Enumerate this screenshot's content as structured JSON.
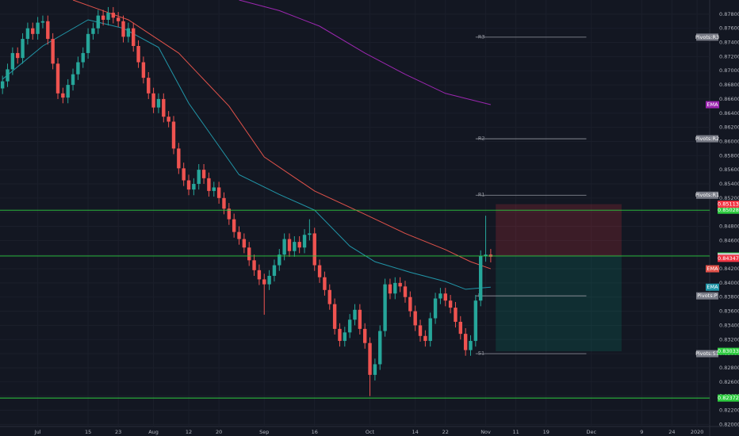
{
  "chart_data": {
    "type": "candlestick",
    "up_color": "#26a69a",
    "down_color": "#ef5350",
    "grid": true,
    "xlim": [
      -0.5,
      140.5
    ],
    "ylim": [
      0.8197,
      0.88
    ],
    "x": [
      0,
      1,
      2,
      3,
      4,
      5,
      6,
      7,
      8,
      9,
      10,
      11,
      12,
      13,
      14,
      15,
      16,
      17,
      18,
      19,
      20,
      21,
      22,
      23,
      24,
      25,
      26,
      27,
      28,
      29,
      30,
      31,
      32,
      33,
      34,
      35,
      36,
      37,
      38,
      39,
      40,
      41,
      42,
      43,
      44,
      45,
      46,
      47,
      48,
      49,
      50,
      51,
      52,
      53,
      54,
      55,
      56,
      57,
      58,
      59,
      60,
      61,
      62,
      63,
      64,
      65,
      66,
      67,
      68,
      69,
      70,
      71,
      72,
      73,
      74,
      75,
      76,
      77,
      78,
      79,
      80,
      81,
      82,
      83,
      84,
      85,
      86,
      87,
      88,
      89,
      90,
      91,
      92,
      93,
      94,
      95,
      96,
      97
    ],
    "open": [
      0.8675,
      0.8685,
      0.8702,
      0.8725,
      0.8718,
      0.8745,
      0.876,
      0.8752,
      0.8768,
      0.877,
      0.8745,
      0.871,
      0.8668,
      0.8662,
      0.868,
      0.8695,
      0.8712,
      0.8725,
      0.8752,
      0.876,
      0.8778,
      0.8772,
      0.8782,
      0.8775,
      0.877,
      0.8748,
      0.876,
      0.8735,
      0.8712,
      0.869,
      0.8668,
      0.8648,
      0.866,
      0.8635,
      0.8628,
      0.859,
      0.8562,
      0.8545,
      0.8532,
      0.854,
      0.856,
      0.8548,
      0.853,
      0.8535,
      0.852,
      0.8505,
      0.849,
      0.8472,
      0.8462,
      0.845,
      0.8432,
      0.8418,
      0.8405,
      0.8398,
      0.841,
      0.8425,
      0.844,
      0.8462,
      0.8445,
      0.8458,
      0.845,
      0.8468,
      0.847,
      0.8425,
      0.8408,
      0.839,
      0.837,
      0.8335,
      0.8318,
      0.833,
      0.8348,
      0.8362,
      0.8335,
      0.8315,
      0.827,
      0.8285,
      0.8332,
      0.8398,
      0.8385,
      0.84,
      0.8395,
      0.838,
      0.836,
      0.834,
      0.8325,
      0.8318,
      0.835,
      0.8378,
      0.8385,
      0.8375,
      0.8365,
      0.8345,
      0.8328,
      0.8305,
      0.8318,
      0.8375,
      0.8438,
      0.844
    ],
    "high": [
      0.8693,
      0.871,
      0.8733,
      0.8733,
      0.8753,
      0.8768,
      0.8768,
      0.8776,
      0.8778,
      0.8778,
      0.8753,
      0.8718,
      0.8676,
      0.8688,
      0.8703,
      0.872,
      0.8733,
      0.876,
      0.8768,
      0.8786,
      0.8786,
      0.879,
      0.879,
      0.8783,
      0.8778,
      0.8768,
      0.8768,
      0.8743,
      0.872,
      0.8698,
      0.8676,
      0.8668,
      0.8668,
      0.8643,
      0.8636,
      0.8598,
      0.857,
      0.8553,
      0.8548,
      0.8568,
      0.8568,
      0.8556,
      0.8543,
      0.8543,
      0.8528,
      0.8513,
      0.8498,
      0.848,
      0.847,
      0.8458,
      0.844,
      0.8426,
      0.8413,
      0.8418,
      0.8433,
      0.8448,
      0.847,
      0.847,
      0.8466,
      0.8466,
      0.8476,
      0.849,
      0.8478,
      0.8433,
      0.8416,
      0.8398,
      0.8378,
      0.8343,
      0.8338,
      0.8356,
      0.837,
      0.837,
      0.8343,
      0.8323,
      0.8293,
      0.834,
      0.8406,
      0.8406,
      0.8408,
      0.8408,
      0.8403,
      0.8388,
      0.8368,
      0.8348,
      0.8333,
      0.8358,
      0.8386,
      0.8393,
      0.8393,
      0.8383,
      0.8373,
      0.8353,
      0.8336,
      0.8326,
      0.8383,
      0.8446,
      0.8495,
      0.8448
    ],
    "low": [
      0.8667,
      0.8677,
      0.8694,
      0.871,
      0.871,
      0.8737,
      0.8744,
      0.8744,
      0.876,
      0.8737,
      0.8702,
      0.866,
      0.8654,
      0.8654,
      0.8672,
      0.8687,
      0.8704,
      0.8717,
      0.8744,
      0.8752,
      0.8764,
      0.8764,
      0.8767,
      0.8762,
      0.874,
      0.874,
      0.8727,
      0.8704,
      0.8682,
      0.866,
      0.864,
      0.864,
      0.8627,
      0.862,
      0.8582,
      0.8554,
      0.8537,
      0.8524,
      0.8524,
      0.8532,
      0.854,
      0.8522,
      0.8522,
      0.8512,
      0.8497,
      0.8482,
      0.8464,
      0.8454,
      0.8442,
      0.8424,
      0.841,
      0.8397,
      0.8355,
      0.839,
      0.8402,
      0.8417,
      0.8432,
      0.8437,
      0.8437,
      0.8442,
      0.8442,
      0.846,
      0.8417,
      0.84,
      0.8382,
      0.8362,
      0.8327,
      0.831,
      0.831,
      0.8322,
      0.834,
      0.8327,
      0.8307,
      0.824,
      0.8262,
      0.8277,
      0.8324,
      0.8377,
      0.8377,
      0.8387,
      0.8372,
      0.8352,
      0.8332,
      0.8317,
      0.831,
      0.831,
      0.8342,
      0.837,
      0.8367,
      0.8357,
      0.8337,
      0.832,
      0.8297,
      0.8297,
      0.831,
      0.8367,
      0.843,
      0.8429
    ],
    "close": [
      0.8685,
      0.8702,
      0.8725,
      0.8718,
      0.8745,
      0.876,
      0.8752,
      0.8768,
      0.877,
      0.8745,
      0.871,
      0.8668,
      0.8662,
      0.868,
      0.8695,
      0.8712,
      0.8725,
      0.8752,
      0.876,
      0.8778,
      0.8772,
      0.8782,
      0.8775,
      0.877,
      0.8748,
      0.876,
      0.8735,
      0.8712,
      0.869,
      0.8668,
      0.8648,
      0.866,
      0.8635,
      0.8628,
      0.859,
      0.8562,
      0.8545,
      0.8532,
      0.854,
      0.856,
      0.8548,
      0.853,
      0.8535,
      0.852,
      0.8505,
      0.849,
      0.8472,
      0.8462,
      0.845,
      0.8432,
      0.8418,
      0.8405,
      0.8398,
      0.841,
      0.8425,
      0.844,
      0.8462,
      0.8445,
      0.8458,
      0.845,
      0.8468,
      0.847,
      0.8425,
      0.8408,
      0.839,
      0.837,
      0.8335,
      0.8318,
      0.833,
      0.8348,
      0.8362,
      0.8335,
      0.8315,
      0.827,
      0.8285,
      0.8332,
      0.8398,
      0.8385,
      0.84,
      0.8395,
      0.838,
      0.836,
      0.834,
      0.8325,
      0.8318,
      0.835,
      0.8378,
      0.8385,
      0.8375,
      0.8365,
      0.8345,
      0.8328,
      0.8305,
      0.8318,
      0.8375,
      0.8438,
      0.844,
      0.8437
    ],
    "lines": [
      {
        "name": "EMA",
        "color": "#9c27b0",
        "x": [
          47,
          55,
          63,
          72,
          80,
          88,
          97
        ],
        "values": [
          0.88,
          0.8785,
          0.8763,
          0.8725,
          0.8695,
          0.8668,
          0.8652
        ]
      },
      {
        "name": "EMA",
        "color": "#e0524a",
        "x": [
          14,
          25,
          35,
          45,
          52,
          62,
          72,
          80,
          88,
          93,
          97
        ],
        "values": [
          0.88,
          0.8772,
          0.8725,
          0.865,
          0.8578,
          0.853,
          0.8497,
          0.847,
          0.8447,
          0.843,
          0.842
        ]
      },
      {
        "name": "EMA",
        "color": "#2196a8",
        "x": [
          0,
          8,
          17,
          24,
          31,
          37,
          47,
          55,
          62,
          69,
          74,
          81,
          88,
          92,
          97
        ],
        "values": [
          0.8688,
          0.8735,
          0.8772,
          0.876,
          0.8733,
          0.8654,
          0.8553,
          0.8525,
          0.8503,
          0.8452,
          0.843,
          0.8415,
          0.8402,
          0.8391,
          0.8394
        ]
      }
    ],
    "yticks": [
      {
        "value": 0.82,
        "label": "0.82000"
      },
      {
        "value": 0.822,
        "label": "0.82200"
      },
      {
        "value": 0.824,
        "label": "0.82400"
      },
      {
        "value": 0.826,
        "label": "0.82600"
      },
      {
        "value": 0.828,
        "label": "0.82800"
      },
      {
        "value": 0.83,
        "label": "0.83000"
      },
      {
        "value": 0.832,
        "label": "0.83200"
      },
      {
        "value": 0.834,
        "label": "0.83400"
      },
      {
        "value": 0.836,
        "label": "0.83600"
      },
      {
        "value": 0.838,
        "label": "0.83800"
      },
      {
        "value": 0.84,
        "label": "0.84000"
      },
      {
        "value": 0.842,
        "label": "0.84200"
      },
      {
        "value": 0.844,
        "label": "0.84400"
      },
      {
        "value": 0.846,
        "label": "0.84600"
      },
      {
        "value": 0.848,
        "label": "0.84800"
      },
      {
        "value": 0.85,
        "label": "0.85000"
      },
      {
        "value": 0.852,
        "label": "0.85200"
      },
      {
        "value": 0.854,
        "label": "0.85400"
      },
      {
        "value": 0.856,
        "label": "0.85600"
      },
      {
        "value": 0.858,
        "label": "0.85800"
      },
      {
        "value": 0.86,
        "label": "0.86000"
      },
      {
        "value": 0.862,
        "label": "0.86200"
      },
      {
        "value": 0.864,
        "label": "0.86400"
      },
      {
        "value": 0.866,
        "label": "0.86600"
      },
      {
        "value": 0.868,
        "label": "0.86800"
      },
      {
        "value": 0.87,
        "label": "0.87000"
      },
      {
        "value": 0.872,
        "label": "0.87200"
      },
      {
        "value": 0.874,
        "label": "0.87400"
      },
      {
        "value": 0.876,
        "label": "0.87600"
      },
      {
        "value": 0.878,
        "label": "0.87800"
      }
    ],
    "xticks": [
      {
        "value": 7,
        "label": "Jul"
      },
      {
        "value": 17,
        "label": "15"
      },
      {
        "value": 23,
        "label": "23"
      },
      {
        "value": 30,
        "label": "Aug"
      },
      {
        "value": 37,
        "label": "12"
      },
      {
        "value": 43,
        "label": "20"
      },
      {
        "value": 52,
        "label": "Sep"
      },
      {
        "value": 62,
        "label": "16"
      },
      {
        "value": 73,
        "label": "Oct"
      },
      {
        "value": 82,
        "label": "14"
      },
      {
        "value": 88,
        "label": "22"
      },
      {
        "value": 96,
        "label": "Nov"
      },
      {
        "value": 102,
        "label": "11"
      },
      {
        "value": 108,
        "label": "19"
      },
      {
        "value": 117,
        "label": "Dec"
      },
      {
        "value": 127,
        "label": "9"
      },
      {
        "value": 133,
        "label": "24"
      },
      {
        "value": 138,
        "label": "2020"
      }
    ],
    "levels": [
      {
        "value": 0.85028,
        "color": "#2ecc40"
      },
      {
        "value": 0.8438,
        "label": "0.84380",
        "color": "#2ecc40"
      },
      {
        "value": 0.82372,
        "color": "#2ecc40"
      }
    ],
    "price_labels": [
      {
        "value": 0.85113,
        "color": "#f23645"
      },
      {
        "value": 0.8437,
        "label": "0.84370",
        "color": "#d1d4dc"
      },
      {
        "value": 0.84347,
        "color": "#f23645"
      },
      {
        "value": 0.83033,
        "color": "#2ecc40"
      }
    ],
    "pivots": {
      "from": 94,
      "to": 116,
      "levels": [
        {
          "name": "R3",
          "tag": "Pivots:R3",
          "value": 0.87475
        },
        {
          "name": "R2",
          "tag": "Pivots:R2",
          "value": 0.86038
        },
        {
          "name": "R1",
          "tag": "Pivots:R1",
          "value": 0.8524
        },
        {
          "name": "P",
          "tag": "Pivots:P",
          "value": 0.83817
        },
        {
          "name": "S1",
          "tag": "Pivots:S1",
          "value": 0.83
        }
      ]
    },
    "position": {
      "from": 98,
      "to": 123,
      "entry": 0.8438,
      "stop": 0.85113,
      "target": 0.83033
    }
  }
}
